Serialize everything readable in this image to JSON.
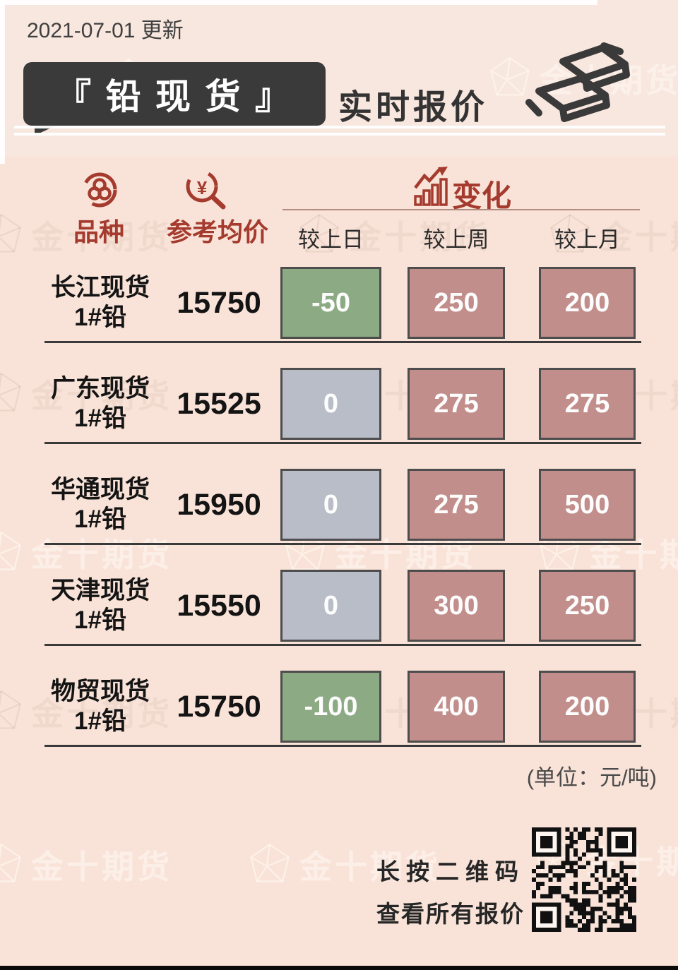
{
  "page": {
    "date_label": "2021-07-01 更新",
    "unit_note": "(单位：元/吨)"
  },
  "header": {
    "title": "铅现货",
    "title_display": "『 铅 现 货 』",
    "subtitle": "实时报价",
    "icon": "gold-bars-icon"
  },
  "table": {
    "col_variety": "品种",
    "col_avg_price": "参考均价",
    "col_change": "变化",
    "col_subs": [
      "较上日",
      "较上周",
      "较上月"
    ],
    "rows": [
      {
        "name_line1": "长江现货",
        "name_line2": "1#铅",
        "avg_price": "15750",
        "changes": [
          -50,
          250,
          200
        ]
      },
      {
        "name_line1": "广东现货",
        "name_line2": "1#铅",
        "avg_price": "15525",
        "changes": [
          0,
          275,
          275
        ]
      },
      {
        "name_line1": "华通现货",
        "name_line2": "1#铅",
        "avg_price": "15950",
        "changes": [
          0,
          275,
          500
        ]
      },
      {
        "name_line1": "天津现货",
        "name_line2": "1#铅",
        "avg_price": "15550",
        "changes": [
          0,
          300,
          250
        ]
      },
      {
        "name_line1": "物贸现货",
        "name_line2": "1#铅",
        "avg_price": "15750",
        "changes": [
          -100,
          400,
          200
        ]
      }
    ]
  },
  "footer": {
    "cta_line1": "长按二维码",
    "cta_line2": "查看所有报价",
    "qr_icon": "qr-code"
  },
  "watermark": {
    "brand": "金十期货"
  },
  "colors": {
    "background": "#f9e3d8",
    "title_bar": "#3a3a3a",
    "accent_red": "#a43b2e",
    "box_up": "#c28e8b",
    "box_down": "#8caa83",
    "box_flat": "#b9bdc8"
  },
  "chart_data": {
    "type": "table",
    "title": "铅现货 实时报价",
    "date": "2021-07-01",
    "unit": "元/吨",
    "columns": [
      "品种",
      "参考均价",
      "较上日",
      "较上周",
      "较上月"
    ],
    "rows": [
      [
        "长江现货 1#铅",
        15750,
        -50,
        250,
        200
      ],
      [
        "广东现货 1#铅",
        15525,
        0,
        275,
        275
      ],
      [
        "华通现货 1#铅",
        15950,
        0,
        275,
        500
      ],
      [
        "天津现货 1#铅",
        15550,
        0,
        300,
        250
      ],
      [
        "物贸现货 1#铅",
        15750,
        -100,
        400,
        200
      ]
    ]
  }
}
